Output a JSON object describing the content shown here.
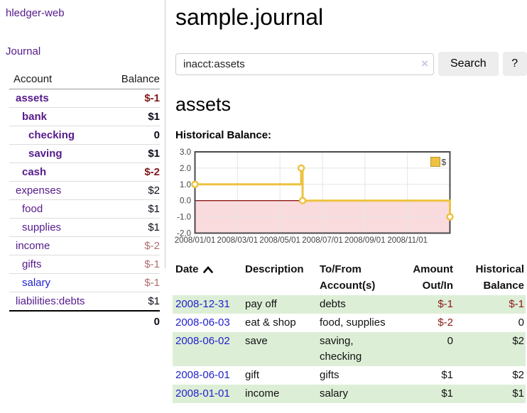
{
  "colors": {
    "accent_purple": "#551a8b",
    "link_blue": "#2222cc",
    "negative_strong": "#7f1717",
    "negative_muted": "#ae6e6e",
    "negative_register": "#8b1a1a",
    "row_highlight_green": "#ddeed6",
    "chart_line_yellow": "#edc240",
    "chart_legend_border": "#b8962e",
    "chart_negative_fill": "#fadbdd",
    "chart_zero_line": "#8b1a1a",
    "button_gray": "#ededed"
  },
  "sidebar": {
    "app_title": "hledger-web",
    "journal_link": "Journal",
    "accounts_header": {
      "account": "Account",
      "balance": "Balance"
    },
    "accounts": [
      {
        "label": "assets",
        "balance": "$-1",
        "depth": 0,
        "bold": true,
        "blue": false
      },
      {
        "label": "bank",
        "balance": "$1",
        "depth": 1,
        "bold": true,
        "blue": false
      },
      {
        "label": "checking",
        "balance": "0",
        "depth": 2,
        "bold": true,
        "blue": false
      },
      {
        "label": "saving",
        "balance": "$1",
        "depth": 2,
        "bold": true,
        "blue": false
      },
      {
        "label": "cash",
        "balance": "$-2",
        "depth": 1,
        "bold": true,
        "blue": false
      },
      {
        "label": "expenses",
        "balance": "$2",
        "depth": 0,
        "bold": false,
        "blue": false
      },
      {
        "label": "food",
        "balance": "$1",
        "depth": 1,
        "bold": false,
        "blue": false
      },
      {
        "label": "supplies",
        "balance": "$1",
        "depth": 1,
        "bold": false,
        "blue": false
      },
      {
        "label": "income",
        "balance": "$-2",
        "depth": 0,
        "bold": false,
        "blue": false
      },
      {
        "label": "gifts",
        "balance": "$-1",
        "depth": 1,
        "bold": false,
        "blue": false
      },
      {
        "label": "salary",
        "balance": "$-1",
        "depth": 1,
        "bold": false,
        "blue": true
      },
      {
        "label": "liabilities:debts",
        "balance": "$1",
        "depth": 0,
        "bold": false,
        "blue": false
      }
    ],
    "total": "0"
  },
  "main": {
    "title": "sample.journal",
    "search": {
      "value": "inacct:assets",
      "clear_icon": "×",
      "button": "Search",
      "help": "?"
    },
    "account_heading": "assets",
    "chart_title": "Historical Balance:"
  },
  "chart_data": {
    "type": "line",
    "step": true,
    "title": "Historical Balance:",
    "series": [
      {
        "name": "$",
        "points": [
          [
            "2008-01-01",
            1
          ],
          [
            "2008-06-01",
            2
          ],
          [
            "2008-06-03",
            0
          ],
          [
            "2008-12-31",
            -1
          ]
        ]
      }
    ],
    "ylim": [
      -2,
      3
    ],
    "yticks": [
      3.0,
      2.0,
      1.0,
      0.0,
      -1.0,
      -2.0
    ],
    "ytick_labels": [
      "3.0",
      "2.0",
      "1.0",
      "0.0",
      "-1.0",
      "-2.0"
    ],
    "xticks": [
      {
        "label": "2008/01/01",
        "month": 0
      },
      {
        "label": "2008/03/01",
        "month": 2
      },
      {
        "label": "2008/05/01",
        "month": 4
      },
      {
        "label": "2008/07/01",
        "month": 6
      },
      {
        "label": "2008/09/01",
        "month": 8
      },
      {
        "label": "2008/11/01",
        "month": 10
      }
    ],
    "x_range_months": [
      0,
      12
    ],
    "grid": true,
    "legend": {
      "label": "$",
      "position": "top-right"
    },
    "negative_region_shaded": true
  },
  "register": {
    "columns": [
      {
        "label": "Date",
        "sorted": "asc",
        "align": "left"
      },
      {
        "label": "Description",
        "align": "left"
      },
      {
        "label": "To/From Account(s)",
        "align": "left"
      },
      {
        "label": "Amount Out/In",
        "align": "right"
      },
      {
        "label": "Historical Balance",
        "align": "right"
      }
    ],
    "rows": [
      {
        "date": "2008-12-31",
        "description": "pay off",
        "accounts": "debts",
        "amount": "$-1",
        "balance": "$-1"
      },
      {
        "date": "2008-06-03",
        "description": "eat & shop",
        "accounts": "food, supplies",
        "amount": "$-2",
        "balance": "0"
      },
      {
        "date": "2008-06-02",
        "description": "save",
        "accounts": "saving, checking",
        "amount": "0",
        "balance": "$2"
      },
      {
        "date": "2008-06-01",
        "description": "gift",
        "accounts": "gifts",
        "amount": "$1",
        "balance": "$2"
      },
      {
        "date": "2008-01-01",
        "description": "income",
        "accounts": "salary",
        "amount": "$1",
        "balance": "$1"
      }
    ]
  }
}
